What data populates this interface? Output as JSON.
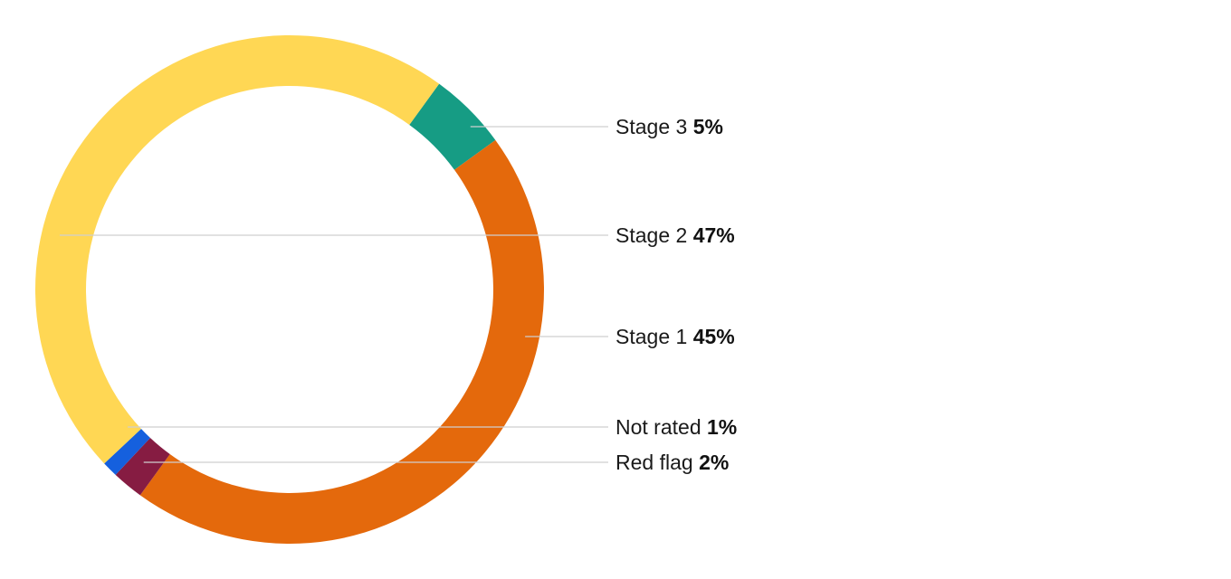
{
  "chart_data": {
    "type": "pie",
    "variant": "donut",
    "slices": [
      {
        "name": "Stage 3",
        "value": 5,
        "value_label": "5%",
        "color": "#169C84"
      },
      {
        "name": "Stage 1",
        "value": 45,
        "value_label": "45%",
        "color": "#E4690C"
      },
      {
        "name": "Red flag",
        "value": 2,
        "value_label": "2%",
        "color": "#861C42"
      },
      {
        "name": "Not rated",
        "value": 1,
        "value_label": "1%",
        "color": "#1560DE"
      },
      {
        "name": "Stage 2",
        "value": 47,
        "value_label": "47%",
        "color": "#FFD754"
      }
    ],
    "start_angle_deg": 36,
    "direction": "clockwise",
    "legend_placement": "right, with leader lines",
    "label_order": [
      "Stage 3",
      "Stage 2",
      "Stage 1",
      "Not rated",
      "Red flag"
    ]
  }
}
